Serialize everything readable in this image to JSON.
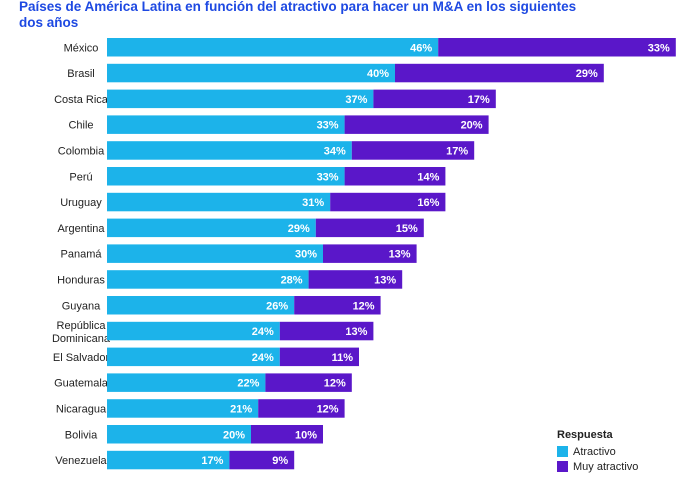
{
  "chart_data": {
    "type": "bar",
    "orientation": "horizontal",
    "stacked": true,
    "title": "Países de América Latina en función del atractivo para hacer un M&A en los siguientes dos años",
    "categories": [
      "México",
      "Brasil",
      "Costa Rica",
      "Chile",
      "Colombia",
      "Perú",
      "Uruguay",
      "Argentina",
      "Panamá",
      "Honduras",
      "Guyana",
      "República Dominicana",
      "El Salvador",
      "Guatemala",
      "Nicaragua",
      "Bolivia",
      "Venezuela"
    ],
    "series": [
      {
        "name": "Atractivo",
        "color": "#1CB3EA",
        "values": [
          46,
          40,
          37,
          33,
          34,
          33,
          31,
          29,
          30,
          28,
          26,
          24,
          24,
          22,
          21,
          20,
          17
        ]
      },
      {
        "name": "Muy atractivo",
        "color": "#5A17C9",
        "values": [
          33,
          29,
          17,
          20,
          17,
          14,
          16,
          15,
          13,
          13,
          12,
          13,
          11,
          12,
          12,
          10,
          9
        ]
      }
    ],
    "value_suffix": "%",
    "grid": false,
    "legend": {
      "title": "Respuesta",
      "position": "bottom-right"
    }
  }
}
